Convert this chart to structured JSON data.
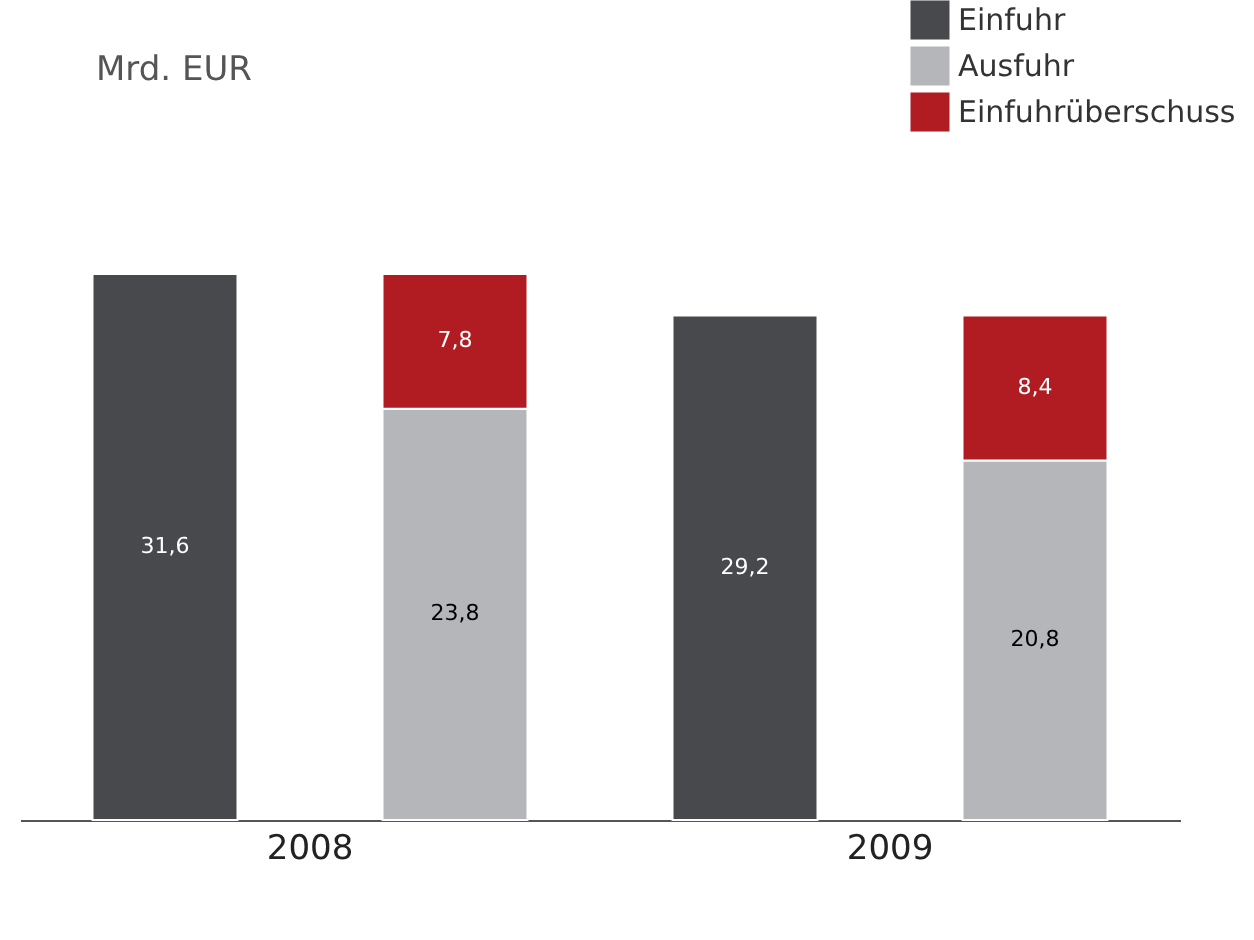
{
  "chart_data": {
    "type": "bar",
    "annotations": [
      "Mrd. EUR"
    ],
    "stacked": true,
    "legend": "top right",
    "grid": false,
    "categories": [
      "2008",
      null,
      "2009",
      null
    ],
    "series": [
      {
        "name": "Einfuhr",
        "color": "#48494d",
        "values": [
          31.6,
          null,
          29.2,
          null
        ],
        "value_labels": [
          "31,6",
          null,
          "29,2",
          null
        ]
      },
      {
        "name": "Ausfuhr",
        "color": "#b5b6ba",
        "values": [
          null,
          23.8,
          null,
          20.8
        ],
        "value_labels": [
          null,
          "23,8",
          null,
          "20,8"
        ]
      },
      {
        "name": "Einfuhrüberschuss",
        "color": "#b01c22",
        "values": [
          null,
          7.8,
          null,
          8.4
        ],
        "value_labels": [
          null,
          "7,8",
          null,
          "8,4"
        ]
      }
    ]
  }
}
